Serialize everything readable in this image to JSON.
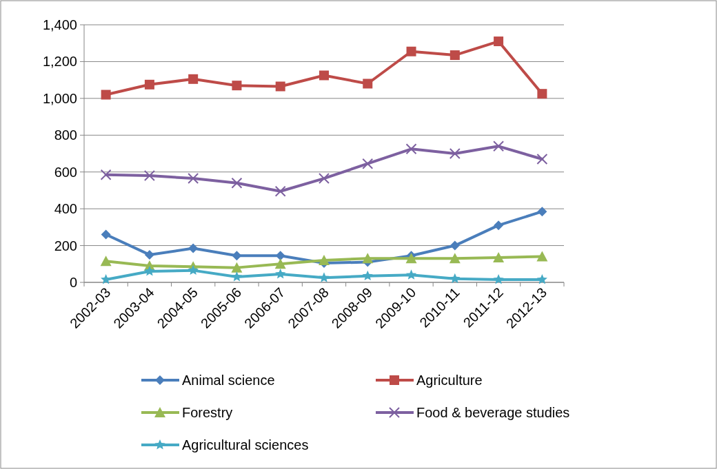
{
  "chart_data": {
    "type": "line",
    "categories": [
      "2002-03",
      "2003-04",
      "2004-05",
      "2005-06",
      "2006-07",
      "2007-08",
      "2008-09",
      "2009-10",
      "2010-11",
      "2011-12",
      "2012-13"
    ],
    "series": [
      {
        "name": "Animal science",
        "color": "#4a7ebb",
        "marker": "diamond",
        "values": [
          260,
          150,
          185,
          145,
          145,
          105,
          110,
          145,
          200,
          310,
          385
        ]
      },
      {
        "name": "Agriculture",
        "color": "#be4b48",
        "marker": "square",
        "values": [
          1020,
          1075,
          1105,
          1070,
          1065,
          1125,
          1080,
          1255,
          1235,
          1310,
          1025
        ]
      },
      {
        "name": "Forestry",
        "color": "#98b954",
        "marker": "triangle",
        "values": [
          115,
          90,
          85,
          80,
          100,
          120,
          130,
          130,
          130,
          135,
          140
        ]
      },
      {
        "name": "Food & beverage studies",
        "color": "#7d60a0",
        "marker": "cross",
        "values": [
          585,
          580,
          565,
          540,
          495,
          565,
          645,
          725,
          700,
          740,
          670
        ]
      },
      {
        "name": "Agricultural sciences",
        "color": "#46aac5",
        "marker": "star",
        "values": [
          15,
          60,
          65,
          30,
          45,
          25,
          35,
          40,
          20,
          15,
          15
        ]
      }
    ],
    "ylim": [
      0,
      1400
    ],
    "yticks": [
      {
        "value": 0,
        "label": "0"
      },
      {
        "value": 200,
        "label": "200"
      },
      {
        "value": 400,
        "label": "400"
      },
      {
        "value": 600,
        "label": "600"
      },
      {
        "value": 800,
        "label": "800"
      },
      {
        "value": 1000,
        "label": "1,000"
      },
      {
        "value": 1200,
        "label": "1,200"
      },
      {
        "value": 1400,
        "label": "1,400"
      }
    ],
    "grid": "y",
    "legend": "bottom"
  }
}
